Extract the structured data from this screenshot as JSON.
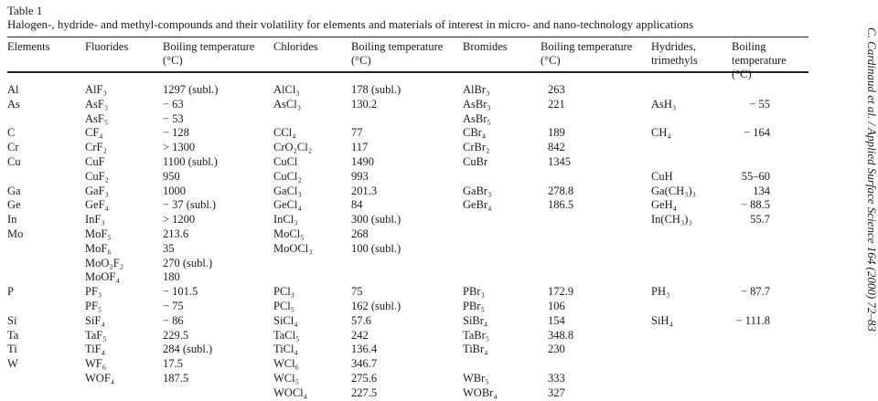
{
  "table": {
    "label": "Table 1",
    "caption": "Halogen-, hydride- and methyl-compounds and their volatility for elements and materials of interest in micro- and nano-technology applications",
    "headers": [
      "Elements",
      "Fluorides",
      "Boiling temperature (°C)",
      "Chlorides",
      "Boiling temperature (°C)",
      "Bromides",
      "Boiling temperature (°C)",
      "Hydrides, trimethyls",
      "Boiling temperature (°C)"
    ],
    "rows": [
      [
        "Al",
        "AlF₃",
        "1297 (subl.)",
        "AlCl₃",
        "178 (subl.)",
        "AlBr₃",
        "263",
        "",
        ""
      ],
      [
        "As",
        "AsF₃",
        "− 63",
        "AsCl₃",
        "130.2",
        "AsBr₃",
        "221",
        "AsH₃",
        "− 55"
      ],
      [
        "",
        "AsF₅",
        "− 53",
        "",
        "",
        "AsBr₅",
        "",
        "",
        ""
      ],
      [
        "C",
        "CF₄",
        "− 128",
        "CCl₄",
        "77",
        "CBr₄",
        "189",
        "CH₄",
        "− 164"
      ],
      [
        "Cr",
        "CrF₂",
        "> 1300",
        "CrO₂Cl₂",
        "117",
        "CrBr₂",
        "842",
        "",
        ""
      ],
      [
        "Cu",
        "CuF",
        "1100 (subl.)",
        "CuCl",
        "1490",
        "CuBr",
        "1345",
        "",
        ""
      ],
      [
        "",
        "CuF₂",
        "950",
        "CuCl₂",
        "993",
        "",
        "",
        "CuH",
        "55–60"
      ],
      [
        "Ga",
        "GaF₃",
        "1000",
        "GaCl₃",
        "201.3",
        "GaBr₃",
        "278.8",
        "Ga(CH₃)₃",
        "134"
      ],
      [
        "Ge",
        "GeF₄",
        "− 37 (subl.)",
        "GeCl₄",
        "84",
        "GeBr₄",
        "186.5",
        "GeH₄",
        "− 88.5"
      ],
      [
        "In",
        "InF₃",
        "> 1200",
        "InCl₃",
        "300 (subl.)",
        "",
        "",
        "In(CH₃)₃",
        "55.7"
      ],
      [
        "Mo",
        "MoF₅",
        "213.6",
        "MoCl₅",
        "268",
        "",
        "",
        "",
        ""
      ],
      [
        "",
        "MoF₆",
        "35",
        "MoOCl₃",
        "100 (subl.)",
        "",
        "",
        "",
        ""
      ],
      [
        "",
        "MoO₂F₂",
        "270 (subl.)",
        "",
        "",
        "",
        "",
        "",
        ""
      ],
      [
        "",
        "MoOF₄",
        "180",
        "",
        "",
        "",
        "",
        "",
        ""
      ],
      [
        "P",
        "PF₃",
        "− 101.5",
        "PCl₃",
        "75",
        "PBr₃",
        "172.9",
        "PH₃",
        "− 87.7"
      ],
      [
        "",
        "PF₅",
        "− 75",
        "PCl₅",
        "162 (subl.)",
        "PBr₅",
        "106",
        "",
        ""
      ],
      [
        "Si",
        "SiF₄",
        "− 86",
        "SiCl₄",
        "57.6",
        "SiBr₄",
        "154",
        "SiH₄",
        "− 111.8"
      ],
      [
        "Ta",
        "TaF₅",
        "229.5",
        "TaCl₅",
        "242",
        "TaBr₅",
        "348.8",
        "",
        ""
      ],
      [
        "Ti",
        "TiF₄",
        "284 (subl.)",
        "TiCl₄",
        "136.4",
        "TiBr₄",
        "230",
        "",
        ""
      ],
      [
        "W",
        "WF₆",
        "17.5",
        "WCl₆",
        "346.7",
        "",
        "",
        "",
        ""
      ],
      [
        "",
        "WOF₄",
        "187.5",
        "WCl₅",
        "275.6",
        "WBr₅",
        "333",
        "",
        ""
      ],
      [
        "",
        "",
        "",
        "WOCl₄",
        "227.5",
        "WOBr₄",
        "327",
        "",
        ""
      ]
    ]
  },
  "running_head": "C. Cardinaud et al. / Applied Surface Science 164 (2000) 72–83"
}
